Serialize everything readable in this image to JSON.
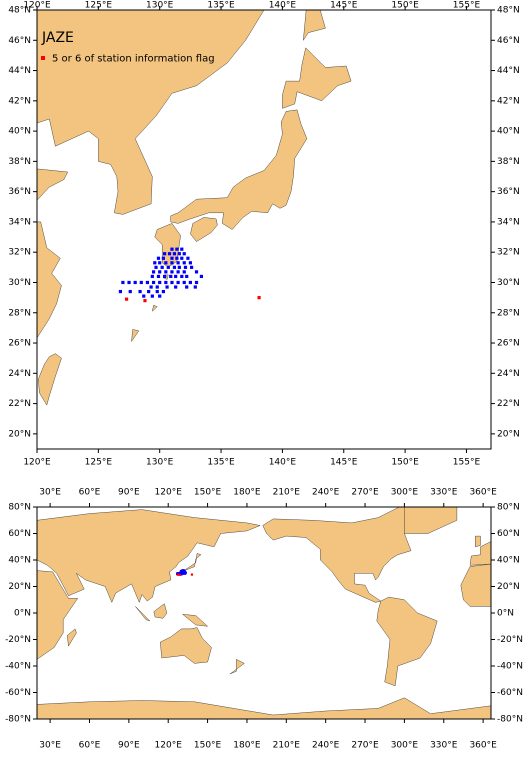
{
  "title": "JAZE",
  "legend": {
    "label": "5 or 6 of station information flag"
  },
  "regional_map": {
    "lonlim": [
      120,
      157
    ],
    "latlim": [
      19,
      48
    ],
    "lonticks": [
      {
        "value": 120,
        "label": "120°E"
      },
      {
        "value": 125,
        "label": "125°E"
      },
      {
        "value": 130,
        "label": "130°E"
      },
      {
        "value": 135,
        "label": "135°E"
      },
      {
        "value": 140,
        "label": "140°E"
      },
      {
        "value": 145,
        "label": "145°E"
      },
      {
        "value": 150,
        "label": "150°E"
      },
      {
        "value": 155,
        "label": "155°E"
      }
    ],
    "latticks": [
      {
        "value": 20,
        "label": "20°N"
      },
      {
        "value": 22,
        "label": "22°N"
      },
      {
        "value": 24,
        "label": "24°N"
      },
      {
        "value": 26,
        "label": "26°N"
      },
      {
        "value": 28,
        "label": "28°N"
      },
      {
        "value": 30,
        "label": "30°N"
      },
      {
        "value": 32,
        "label": "32°N"
      },
      {
        "value": 34,
        "label": "34°N"
      },
      {
        "value": 36,
        "label": "36°N"
      },
      {
        "value": 38,
        "label": "38°N"
      },
      {
        "value": 40,
        "label": "40°N"
      },
      {
        "value": 42,
        "label": "42°N"
      },
      {
        "value": 44,
        "label": "44°N"
      },
      {
        "value": 46,
        "label": "46°N"
      },
      {
        "value": 48,
        "label": "48°N"
      }
    ]
  },
  "global_map": {
    "lonlim": [
      20,
      366
    ],
    "latlim": [
      -80,
      80
    ],
    "lonticks": [
      {
        "value": 30,
        "label": "30°E"
      },
      {
        "value": 60,
        "label": "60°E"
      },
      {
        "value": 90,
        "label": "90°E"
      },
      {
        "value": 120,
        "label": "120°E"
      },
      {
        "value": 150,
        "label": "150°E"
      },
      {
        "value": 180,
        "label": "180°E"
      },
      {
        "value": 210,
        "label": "210°E"
      },
      {
        "value": 240,
        "label": "240°E"
      },
      {
        "value": 270,
        "label": "270°E"
      },
      {
        "value": 300,
        "label": "300°E"
      },
      {
        "value": 330,
        "label": "330°E"
      },
      {
        "value": 360,
        "label": "360°E"
      }
    ],
    "latticks": [
      {
        "value": 80,
        "label": "80°N"
      },
      {
        "value": 60,
        "label": "60°N"
      },
      {
        "value": 40,
        "label": "40°N"
      },
      {
        "value": 20,
        "label": "20°N"
      },
      {
        "value": 0,
        "label": "0°N"
      },
      {
        "value": -20,
        "label": "-20°N"
      },
      {
        "value": -40,
        "label": "-40°N"
      },
      {
        "value": -60,
        "label": "-60°N"
      },
      {
        "value": -80,
        "label": "-80°N"
      }
    ]
  },
  "stations": {
    "color": "#0000ff",
    "lon": [
      131.0,
      131.4,
      131.8,
      130.4,
      130.8,
      131.2,
      131.6,
      132.0,
      129.9,
      130.3,
      131.0,
      131.4,
      131.8,
      132.3,
      129.6,
      130.0,
      130.5,
      131.0,
      131.5,
      132.0,
      132.5,
      129.7,
      130.2,
      130.7,
      131.2,
      131.6,
      132.1,
      132.6,
      129.5,
      130.0,
      130.5,
      131.0,
      131.5,
      132.0,
      133.0,
      129.4,
      129.9,
      130.4,
      130.9,
      131.3,
      131.8,
      132.2,
      133.4,
      127.0,
      127.5,
      128.0,
      128.5,
      129.0,
      129.5,
      130.0,
      130.5,
      131.0,
      131.5,
      132.0,
      132.5,
      133.0,
      129.3,
      129.8,
      130.6,
      131.3,
      132.2,
      132.9,
      126.8,
      127.6,
      128.4,
      129.1,
      129.8,
      130.3,
      128.7,
      129.4,
      130.0
    ],
    "lat": [
      32.2,
      32.2,
      32.2,
      31.9,
      31.9,
      31.9,
      31.9,
      31.9,
      31.6,
      31.6,
      31.6,
      31.6,
      31.6,
      31.6,
      31.3,
      31.3,
      31.3,
      31.3,
      31.3,
      31.3,
      31.3,
      31.0,
      31.0,
      31.0,
      31.0,
      31.0,
      31.0,
      31.0,
      30.7,
      30.7,
      30.7,
      30.7,
      30.7,
      30.7,
      30.7,
      30.4,
      30.4,
      30.4,
      30.4,
      30.4,
      30.4,
      30.4,
      30.4,
      30.0,
      30.0,
      30.0,
      30.0,
      30.0,
      30.0,
      30.0,
      30.0,
      30.0,
      30.0,
      30.0,
      30.0,
      30.0,
      29.7,
      29.7,
      29.7,
      29.7,
      29.7,
      29.7,
      29.4,
      29.4,
      29.4,
      29.4,
      29.4,
      29.4,
      29.1,
      29.1,
      29.1
    ]
  },
  "flagged_stations": {
    "color": "#ff0000",
    "lon": [
      127.3,
      128.8,
      138.1
    ],
    "lat": [
      28.9,
      28.8,
      29.0
    ]
  }
}
